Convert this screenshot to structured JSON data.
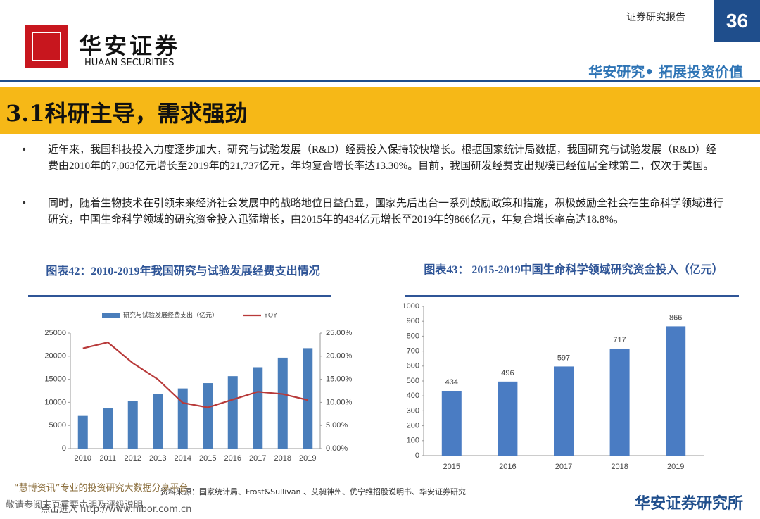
{
  "header": {
    "brand": "华安证券",
    "brand_en": "HUAAN SECURITIES",
    "report_type": "证券研究报告",
    "page": "36",
    "slogan": "华安研究• 拓展投资价值"
  },
  "section_title": "3.1科研主导，需求强劲",
  "bullets": [
    "近年来，我国科技投入力度逐步加大，研究与试验发展（R&D）经费投入保持较快增长。根据国家统计局数据，我国研究与试验发展（R&D）经费由2010年的7,063亿元增长至2019年的21,737亿元，年均复合增长率达13.30%。目前，我国研发经费支出规模已经位居全球第二，仅次于美国。",
    "同时，随着生物技术在引领未来经济社会发展中的战略地位日益凸显，国家先后出台一系列鼓励政策和措施，积极鼓励全社会在生命科学领域进行研究，中国生命科学领域的研究资金投入迅猛增长，由2015年的434亿元增长至2019年的866亿元，年复合增长率高达18.8%。"
  ],
  "chart_data": [
    {
      "type": "combo",
      "title": "图表42：2010-2019年我国研究与试验发展经费支出情况",
      "categories": [
        "2010",
        "2011",
        "2012",
        "2013",
        "2014",
        "2015",
        "2016",
        "2017",
        "2018",
        "2019"
      ],
      "series": [
        {
          "name": "研究与试验发展经费支出（亿元）",
          "type": "bar",
          "color": "#4a7ebb",
          "values": [
            7063,
            8687,
            10298,
            11847,
            13016,
            14170,
            15677,
            17606,
            19678,
            21737
          ]
        },
        {
          "name": "YOY",
          "type": "line",
          "axis": "y2",
          "color": "#b83a3a",
          "values": [
            21.7,
            23.0,
            18.5,
            15.0,
            9.9,
            8.9,
            10.6,
            12.3,
            11.8,
            10.5
          ]
        }
      ],
      "ylim": [
        0,
        25000
      ],
      "yticks": [
        0,
        5000,
        10000,
        15000,
        20000,
        25000
      ],
      "y2lim": [
        0,
        25
      ],
      "y2ticks": [
        {
          "value": 0,
          "label": "0.00%"
        },
        {
          "value": 5,
          "label": "5.00%"
        },
        {
          "value": 10,
          "label": "10.00%"
        },
        {
          "value": 15,
          "label": "15.00%"
        },
        {
          "value": 20,
          "label": "20.00%"
        },
        {
          "value": 25,
          "label": "25.00%"
        }
      ],
      "legend": "top"
    },
    {
      "type": "bar",
      "title": "图表43： 2015-2019中国生命科学领域研究资金投入（亿元）",
      "categories": [
        "2015",
        "2016",
        "2017",
        "2018",
        "2019"
      ],
      "values": [
        434,
        496,
        597,
        717,
        866
      ],
      "color": "#4a7cc3",
      "ylim": [
        0,
        1000
      ],
      "yticks": [
        0,
        100,
        200,
        300,
        400,
        500,
        600,
        700,
        800,
        900,
        1000
      ]
    }
  ],
  "source": "资料来源：国家统计局、Frost&Sullivan 、艾昶神州、优宁维招股说明书、华安证券研究",
  "footer": {
    "institute": "华安证券研究所"
  },
  "watermark": [
    "“慧博资讯”专业的投资研究大数据分享平台",
    "敬请参阅末页重要声明及评级说明",
    "点击进入 http://www.hibor.com.cn"
  ]
}
